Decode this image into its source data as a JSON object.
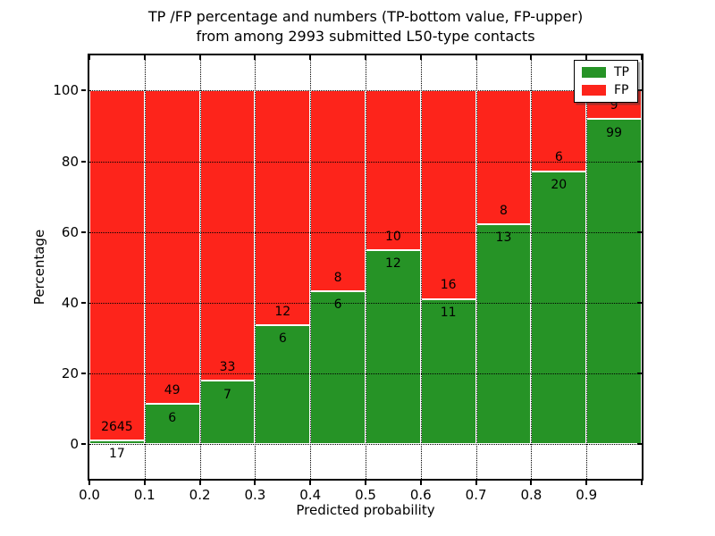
{
  "figure": {
    "title_line1": "TP /FP percentage and numbers (TP-bottom value, FP-upper)",
    "title_line2": "from among 2993 submitted L50-type contacts"
  },
  "chart_data": {
    "type": "bar",
    "subtype": "stacked-percentage-histogram",
    "title": "TP /FP percentage and numbers (TP-bottom value, FP-upper) from among 2993 submitted L50-type contacts",
    "xlabel": "Predicted probability",
    "ylabel": "Percentage",
    "total_contacts": 2993,
    "bin_width": 0.1,
    "bin_starts": [
      0.0,
      0.1,
      0.2,
      0.3,
      0.4,
      0.5,
      0.6,
      0.7,
      0.8,
      0.9
    ],
    "series": [
      {
        "name": "TP",
        "color": "#269326",
        "counts": [
          17,
          6,
          7,
          6,
          6,
          12,
          11,
          13,
          20,
          99
        ]
      },
      {
        "name": "FP",
        "color": "#fd241b",
        "counts": [
          2645,
          49,
          33,
          12,
          8,
          10,
          16,
          8,
          6,
          9
        ]
      }
    ],
    "tp_percent_of_bin": [
      0.64,
      10.91,
      17.5,
      33.33,
      42.86,
      54.55,
      40.74,
      61.9,
      76.92,
      91.67
    ],
    "xlim": [
      0.0,
      1.0
    ],
    "ylim": [
      -10,
      110
    ],
    "xtick_positions": [
      0.0,
      0.1,
      0.2,
      0.3,
      0.4,
      0.5,
      0.6,
      0.7,
      0.8,
      0.9
    ],
    "xtick_labels": [
      "0.0",
      "0.1",
      "0.2",
      "0.3",
      "0.4",
      "0.5",
      "0.6",
      "0.7",
      "0.8",
      "0.9"
    ],
    "xtick_marks": [
      0.0,
      0.1,
      0.2,
      0.3,
      0.4,
      0.5,
      0.6,
      0.7,
      0.8,
      0.9,
      1.0
    ],
    "ytick_positions": [
      0,
      20,
      40,
      60,
      80,
      100
    ],
    "ytick_labels": [
      "0",
      "20",
      "40",
      "60",
      "80",
      "100"
    ],
    "grid": "dotted",
    "grid_color": "#000000",
    "legend": {
      "position": "upper right",
      "entries": [
        "TP",
        "FP"
      ]
    }
  }
}
